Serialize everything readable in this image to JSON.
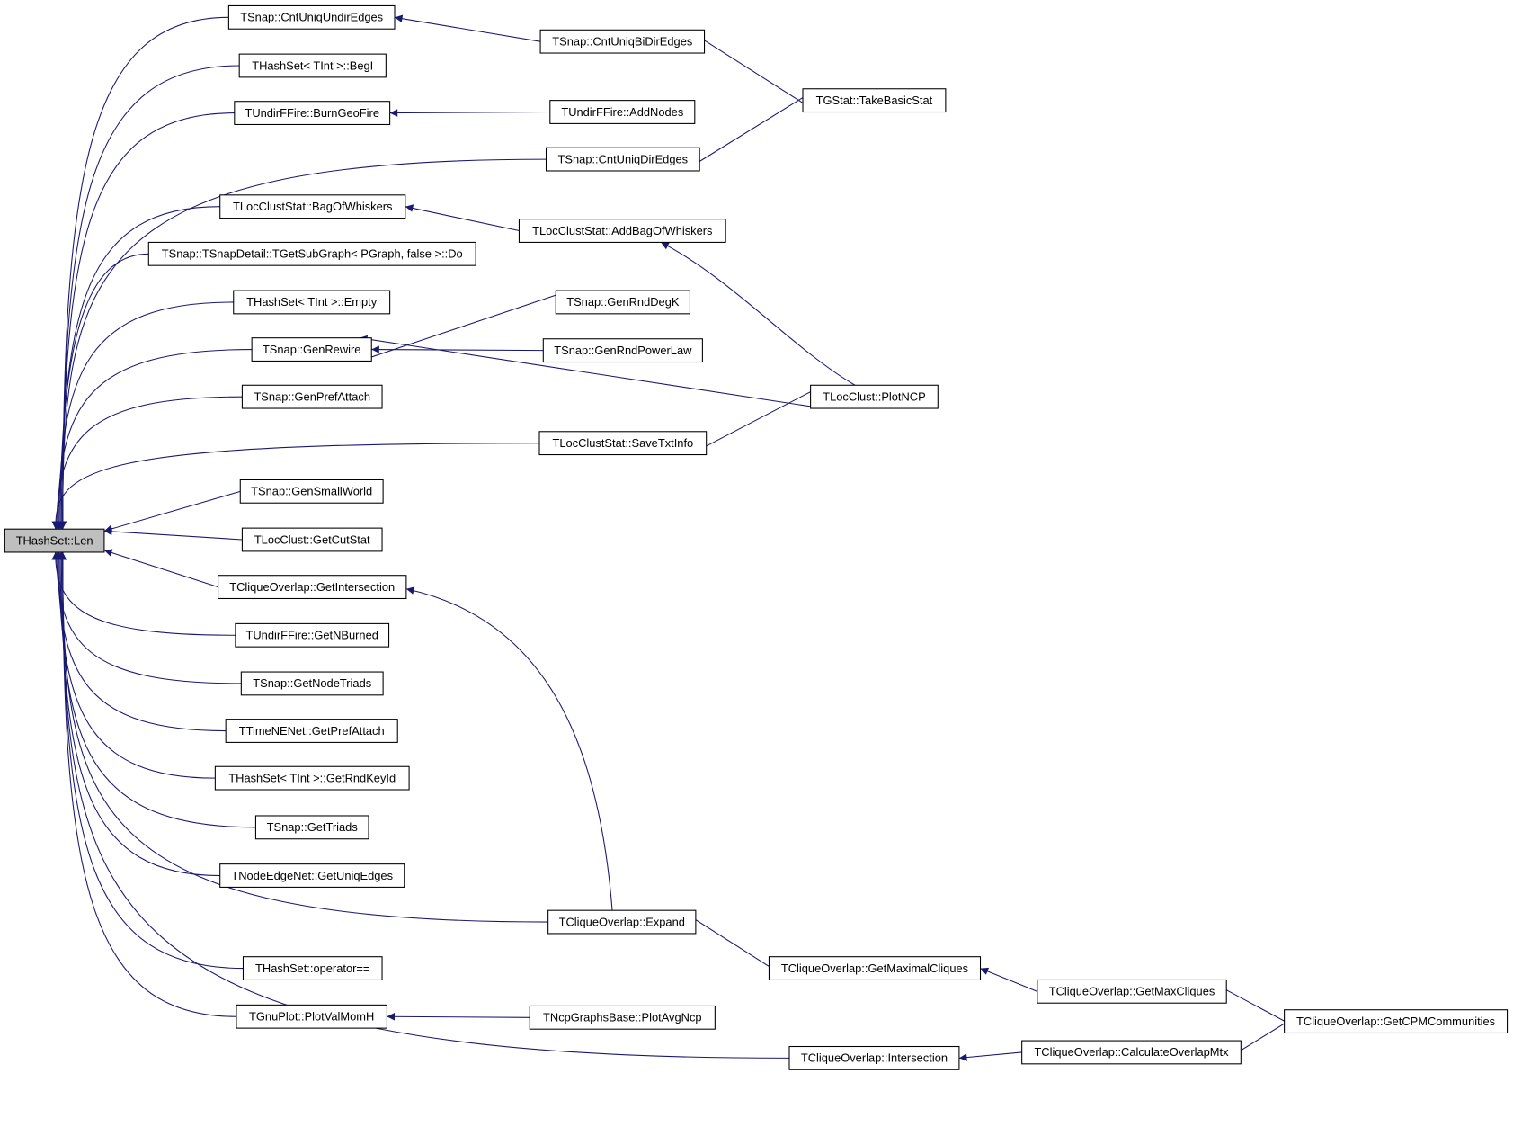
{
  "diagram": {
    "edge_color": "#191970",
    "root_fill": "#bfbfbf",
    "root": "len",
    "nodes": [
      {
        "id": "len",
        "label": "THashSet::Len"
      },
      {
        "id": "cntUndir",
        "label": "TSnap::CntUniqUndirEdges"
      },
      {
        "id": "begI",
        "label": "THashSet< TInt >::BegI"
      },
      {
        "id": "burnGeo",
        "label": "TUndirFFire::BurnGeoFire"
      },
      {
        "id": "cntDir",
        "label": "TSnap::CntUniqDirEdges"
      },
      {
        "id": "bagWh",
        "label": "TLocClustStat::BagOfWhiskers"
      },
      {
        "id": "subDo",
        "label": "TSnap::TSnapDetail::TGetSubGraph< PGraph, false >::Do"
      },
      {
        "id": "empty",
        "label": "THashSet< TInt >::Empty"
      },
      {
        "id": "genRewire",
        "label": "TSnap::GenRewire"
      },
      {
        "id": "genPref",
        "label": "TSnap::GenPrefAttach"
      },
      {
        "id": "saveTxt",
        "label": "TLocClustStat::SaveTxtInfo"
      },
      {
        "id": "genSmall",
        "label": "TSnap::GenSmallWorld"
      },
      {
        "id": "cutStat",
        "label": "TLocClust::GetCutStat"
      },
      {
        "id": "getInter",
        "label": "TCliqueOverlap::GetIntersection"
      },
      {
        "id": "nBurned",
        "label": "TUndirFFire::GetNBurned"
      },
      {
        "id": "nodeTriads",
        "label": "TSnap::GetNodeTriads"
      },
      {
        "id": "tnePref",
        "label": "TTimeNENet::GetPrefAttach"
      },
      {
        "id": "rndKey",
        "label": "THashSet< TInt >::GetRndKeyId"
      },
      {
        "id": "triads",
        "label": "TSnap::GetTriads"
      },
      {
        "id": "uniqEdges",
        "label": "TNodeEdgeNet::GetUniqEdges"
      },
      {
        "id": "expand",
        "label": "TCliqueOverlap::Expand"
      },
      {
        "id": "opEq",
        "label": "THashSet::operator=="
      },
      {
        "id": "valMom",
        "label": "TGnuPlot::PlotValMomH"
      },
      {
        "id": "inter",
        "label": "TCliqueOverlap::Intersection"
      },
      {
        "id": "cntBi",
        "label": "TSnap::CntUniqBiDirEdges"
      },
      {
        "id": "addNodes",
        "label": "TUndirFFire::AddNodes"
      },
      {
        "id": "addBag",
        "label": "TLocClustStat::AddBagOfWhiskers"
      },
      {
        "id": "rndDegK",
        "label": "TSnap::GenRndDegK"
      },
      {
        "id": "rndPow",
        "label": "TSnap::GenRndPowerLaw"
      },
      {
        "id": "avgNcp",
        "label": "TNcpGraphsBase::PlotAvgNcp"
      },
      {
        "id": "maximal",
        "label": "TCliqueOverlap::GetMaximalCliques"
      },
      {
        "id": "takeBasic",
        "label": "TGStat::TakeBasicStat"
      },
      {
        "id": "plotNcp",
        "label": "TLocClust::PlotNCP"
      },
      {
        "id": "maxCliq",
        "label": "TCliqueOverlap::GetMaxCliques"
      },
      {
        "id": "overlapMtx",
        "label": "TCliqueOverlap::CalculateOverlapMtx"
      },
      {
        "id": "cpm",
        "label": "TCliqueOverlap::GetCPMCommunities"
      }
    ],
    "edges": [
      [
        "cntUndir",
        "len"
      ],
      [
        "begI",
        "len"
      ],
      [
        "burnGeo",
        "len"
      ],
      [
        "cntDir",
        "len"
      ],
      [
        "bagWh",
        "len"
      ],
      [
        "subDo",
        "len"
      ],
      [
        "empty",
        "len"
      ],
      [
        "genRewire",
        "len"
      ],
      [
        "genPref",
        "len"
      ],
      [
        "saveTxt",
        "len"
      ],
      [
        "genSmall",
        "len"
      ],
      [
        "cutStat",
        "len"
      ],
      [
        "getInter",
        "len"
      ],
      [
        "nBurned",
        "len"
      ],
      [
        "nodeTriads",
        "len"
      ],
      [
        "tnePref",
        "len"
      ],
      [
        "rndKey",
        "len"
      ],
      [
        "triads",
        "len"
      ],
      [
        "uniqEdges",
        "len"
      ],
      [
        "expand",
        "len"
      ],
      [
        "opEq",
        "len"
      ],
      [
        "valMom",
        "len"
      ],
      [
        "inter",
        "len"
      ],
      [
        "cntBi",
        "cntUndir"
      ],
      [
        "takeBasic",
        "cntBi"
      ],
      [
        "takeBasic",
        "cntDir"
      ],
      [
        "addNodes",
        "burnGeo"
      ],
      [
        "addBag",
        "bagWh"
      ],
      [
        "plotNcp",
        "addBag"
      ],
      [
        "rndDegK",
        "genRewire"
      ],
      [
        "rndPow",
        "genRewire"
      ],
      [
        "plotNcp",
        "genRewire"
      ],
      [
        "plotNcp",
        "saveTxt"
      ],
      [
        "expand",
        "getInter"
      ],
      [
        "maximal",
        "expand"
      ],
      [
        "maxCliq",
        "maximal"
      ],
      [
        "cpm",
        "maxCliq"
      ],
      [
        "cpm",
        "overlapMtx"
      ],
      [
        "overlapMtx",
        "inter"
      ],
      [
        "avgNcp",
        "valMom"
      ]
    ]
  }
}
